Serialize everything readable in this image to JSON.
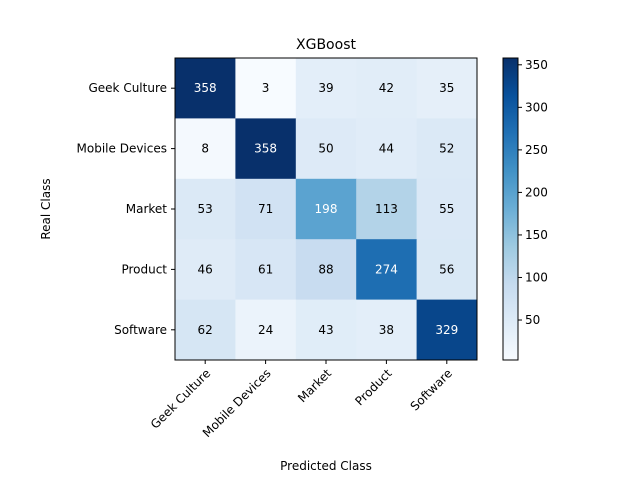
{
  "chart_data": {
    "type": "heatmap",
    "title": "XGBoost",
    "xlabel": "Predicted Class",
    "ylabel": "Real Class",
    "categories": [
      "Geek Culture",
      "Mobile Devices",
      "Market",
      "Product",
      "Software"
    ],
    "matrix": [
      [
        358,
        3,
        39,
        42,
        35
      ],
      [
        8,
        358,
        50,
        44,
        52
      ],
      [
        53,
        71,
        198,
        113,
        55
      ],
      [
        46,
        61,
        88,
        274,
        56
      ],
      [
        62,
        24,
        43,
        38,
        329
      ]
    ],
    "colorbar": {
      "colormap": "Blues",
      "vmin": 3,
      "vmax": 358,
      "ticks": [
        50,
        100,
        150,
        200,
        250,
        300,
        350
      ]
    }
  }
}
